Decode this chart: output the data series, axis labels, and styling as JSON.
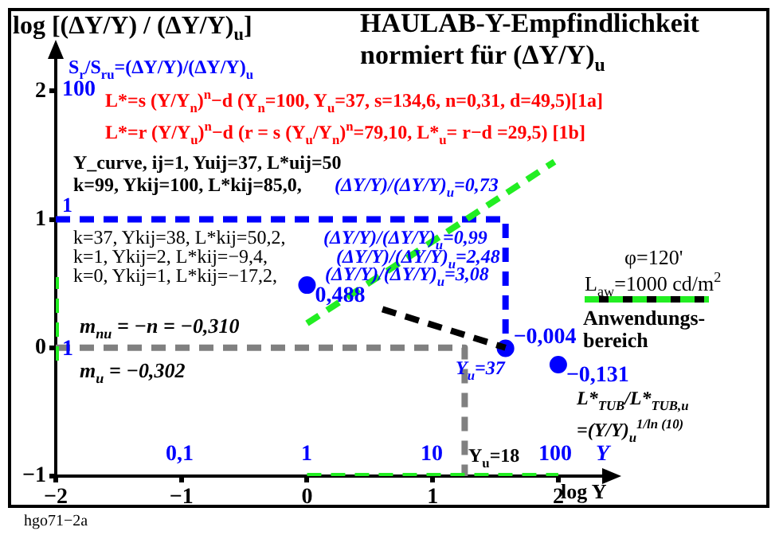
{
  "chart_data": {
    "type": "line",
    "title": "HAULAB-Y-Empfindlichkeit",
    "subtitle": "normiert für (ΔY/Y)$_{u}$",
    "ylabel": "log [(ΔY/Y) / (ΔY/Y)$_{u}$]",
    "xlabel": "log Y",
    "xlim": [
      -2,
      2.4
    ],
    "xticks": [
      {
        "value": -2,
        "label": "−2"
      },
      {
        "value": -1,
        "label": "−1"
      },
      0,
      1,
      2
    ],
    "ylim": [
      -1,
      2.3
    ],
    "yticks": [
      {
        "value": -1,
        "label": "−1"
      },
      0,
      1,
      2
    ],
    "grid": false,
    "legend": "right",
    "series": [
      {
        "name": "Anwendungs-bereich",
        "color": "#22ee22",
        "line_style": "dashed",
        "x": [
          0,
          2
        ],
        "values": [
          -1,
          -1
        ]
      },
      {
        "color": "#22ee22",
        "line_style": "dashed",
        "x": [
          -2,
          -2
        ],
        "values": [
          -0.1,
          0.55
        ]
      },
      {
        "color": "#22ee22",
        "line_style": "dashed",
        "x": [
          0,
          1.97
        ],
        "values": [
          0.19,
          1.45
        ]
      },
      {
        "color": "#000000",
        "line_style": "dashed",
        "x": [
          0.6,
          1.58
        ],
        "values": [
          0.3,
          0.0
        ]
      },
      {
        "color": "#0000ff",
        "line_style": "dashed",
        "x": [
          -2,
          1.58,
          1.58
        ],
        "values": [
          1,
          1,
          0.0
        ]
      },
      {
        "color": "#808080",
        "line_style": "dashed",
        "x": [
          -2,
          1.255,
          1.255
        ],
        "values": [
          0,
          0,
          -1
        ]
      },
      {
        "type": "scatter",
        "color": "#0000ff",
        "marker": "circle",
        "x": [
          0,
          1.58,
          2
        ],
        "values": [
          0.488,
          -0.004,
          -0.131
        ],
        "value_labels": [
          "0,488",
          "−0,004",
          "−0,131"
        ]
      }
    ],
    "annotations": [
      "S$_{r}$/S$_{ru}$=(ΔY/Y)/(ΔY/Y)$_{u}$",
      "L*=s (Y/Y$_{n}$)$^{n}$−d   (Y$_{n}$=100, Y$_{u}$=37, s=134,6, n=0,31, d=49,5)[1a]",
      "L*=r (Y/Y$_{u}$)$^{n}$−d   (r = s (Y$_{u}$/Y$_{n}$)$^{n}$=79,10, L*$_{u}$= r−d =29,5)     [1b]",
      "Y_curve, ij=1, Yuij=37, L*uij=50",
      "k=99, Ykij=100, L*kij=85,0,",
      "(ΔY/Y)/(ΔY/Y)$_{u}$=0,73",
      "k=37, Ykij=38, L*kij=50,2,",
      "(ΔY/Y)/(ΔY/Y)$_{u}$=0,99",
      "k=1, Ykij=2, L*kij=−9,4,",
      "(ΔY/Y)/(ΔY/Y)$_{u}$=2,48",
      "k=0, Ykij=1, L*kij=−17,2,",
      "(ΔY/Y)/(ΔY/Y)$_{u}$=3,08",
      "m$_{nu}$ = −n = −0,310",
      "m$_{u}$ = −0,302",
      "φ=120'",
      "L$_{aw}$=1000 cd/m$^{2}$",
      "L*$_{TUB}$/L*$_{TUB,u}$",
      "=(Y/Y)$_{u}$$^{1/ln (10)}$",
      "Y$_{u}$=37",
      "Y$_{u}$=18",
      "hgo71−2a",
      "0,1",
      "1",
      "10",
      "100",
      "Y",
      "100",
      "1",
      "1"
    ]
  }
}
